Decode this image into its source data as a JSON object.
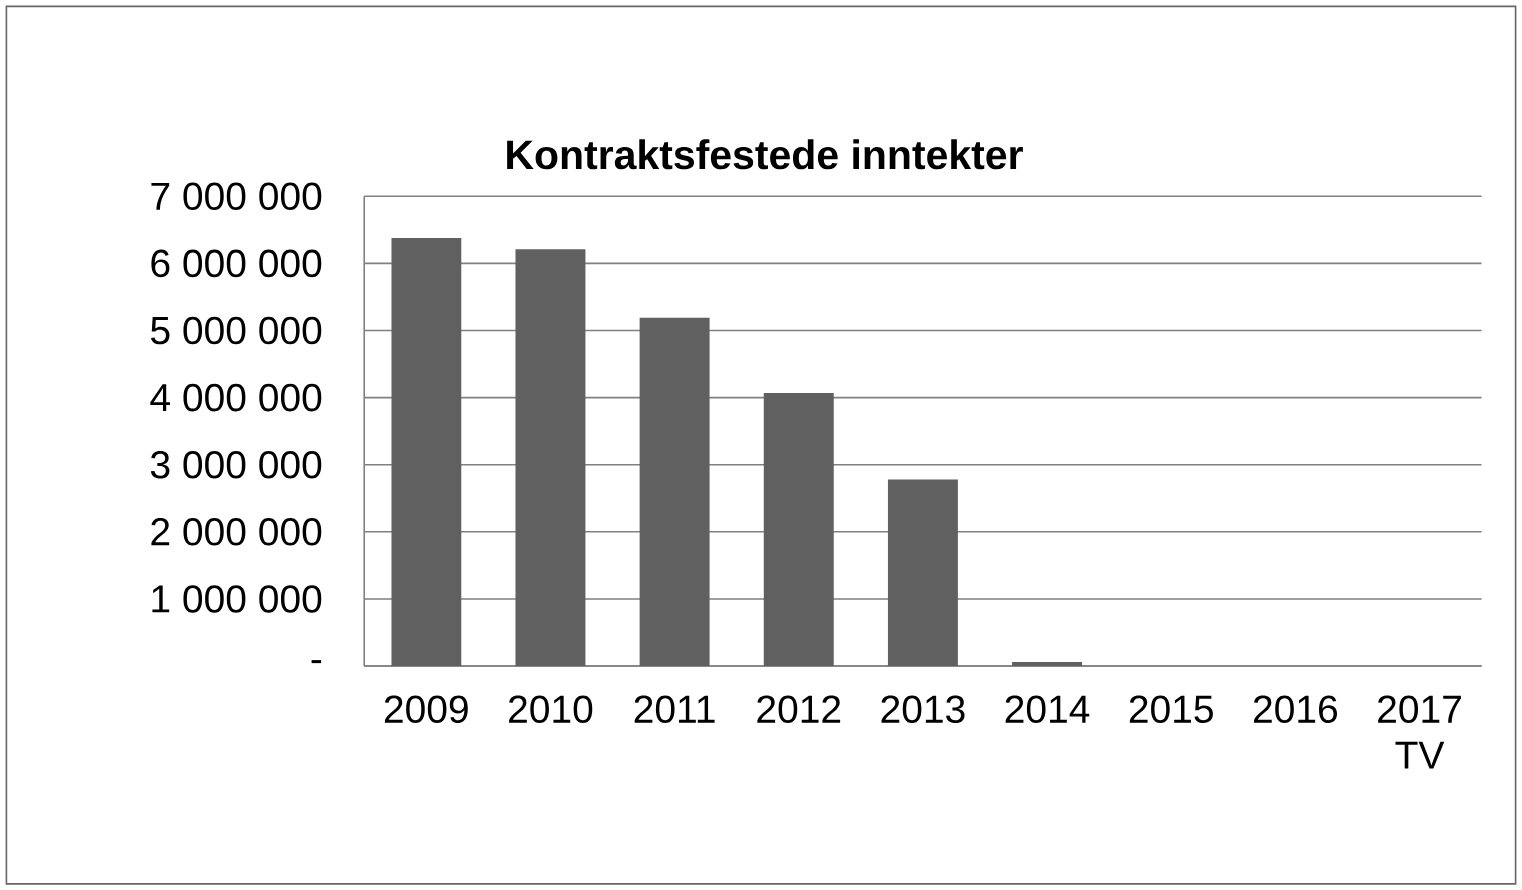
{
  "chart_data": {
    "type": "bar",
    "title": "Kontraktsfestede inntekter",
    "categories": [
      "2009",
      "2010",
      "2011",
      "2012",
      "2013",
      "2014",
      "2015",
      "2016",
      "2017 TV"
    ],
    "values": [
      6380000,
      6210000,
      5190000,
      4070000,
      2780000,
      60000,
      0,
      0,
      0
    ],
    "color": "#606060",
    "ylim": [
      0,
      7000000
    ],
    "yticks": [
      {
        "value": 0,
        "label": "-"
      },
      {
        "value": 1000000,
        "label": "1 000 000"
      },
      {
        "value": 2000000,
        "label": "2 000 000"
      },
      {
        "value": 3000000,
        "label": "3 000 000"
      },
      {
        "value": 4000000,
        "label": "4 000 000"
      },
      {
        "value": 5000000,
        "label": "5 000 000"
      },
      {
        "value": 6000000,
        "label": "6 000 000"
      },
      {
        "value": 7000000,
        "label": "7 000 000"
      }
    ],
    "grid": "y"
  }
}
